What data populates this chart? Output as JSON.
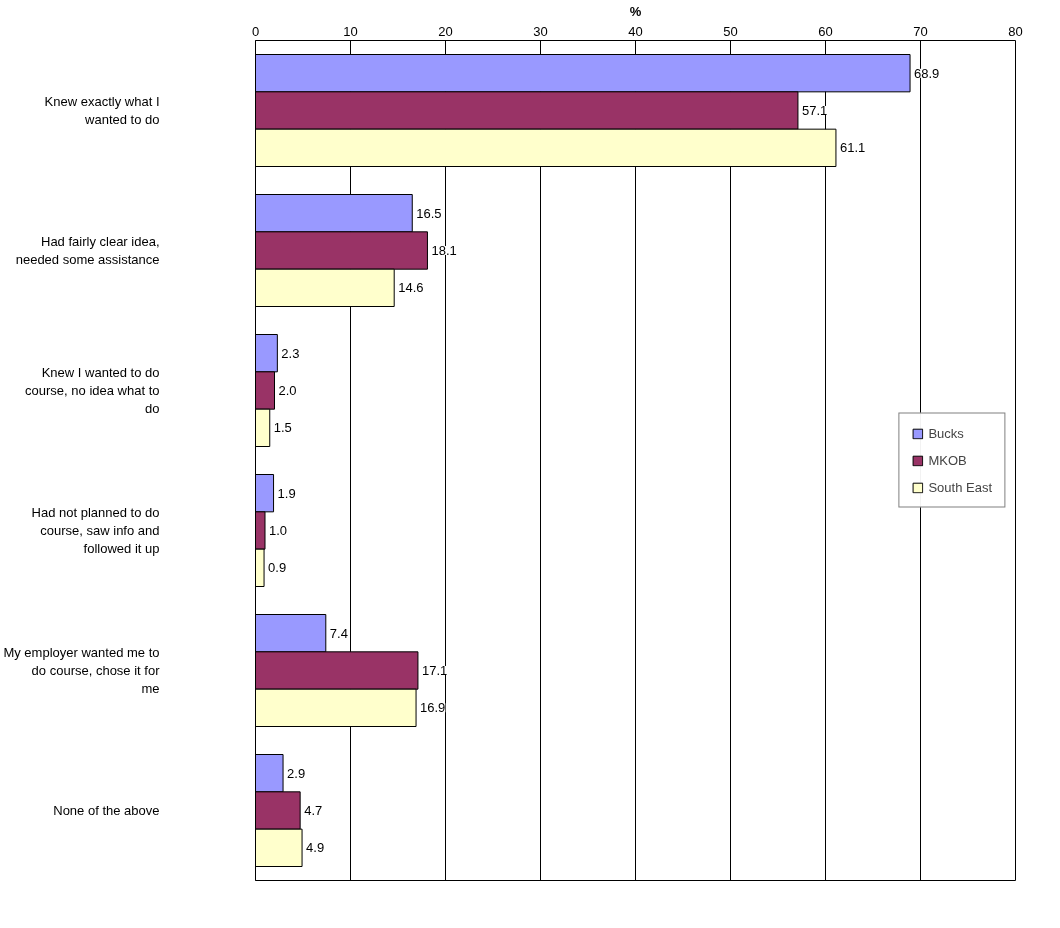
{
  "chart_data": {
    "type": "bar",
    "orientation": "horizontal",
    "xlabel": "%",
    "categories": [
      "Knew exactly what I wanted to do",
      "Had fairly clear idea, needed some assistance",
      "Knew I wanted to do course, no idea what to do",
      "Had not planned to do course, saw info and followed it up",
      "My employer wanted me to do course, chose it for me",
      "None of the above"
    ],
    "series": [
      {
        "name": "Bucks",
        "color": "#9999ff",
        "values": [
          68.9,
          16.5,
          2.3,
          1.9,
          7.4,
          2.9
        ],
        "value_labels": [
          "68.9",
          "16.5",
          "2.3",
          "1.9",
          "7.4",
          "2.9"
        ]
      },
      {
        "name": "MKOB",
        "color": "#993366",
        "values": [
          57.1,
          18.1,
          2.0,
          1.0,
          17.1,
          4.7
        ],
        "value_labels": [
          "57.1",
          "18.1",
          "2.0",
          "1.0",
          "17.1",
          "4.7"
        ]
      },
      {
        "name": "South East",
        "color": "#ffffcc",
        "values": [
          61.1,
          14.6,
          1.5,
          0.9,
          16.9,
          4.9
        ],
        "value_labels": [
          "61.1",
          "14.6",
          "1.5",
          "0.9",
          "16.9",
          "4.9"
        ]
      }
    ],
    "xlim": [
      0,
      80
    ],
    "xticks": [
      0,
      10,
      20,
      30,
      40,
      50,
      60,
      70,
      80
    ],
    "grid": "x",
    "legend": "right"
  }
}
